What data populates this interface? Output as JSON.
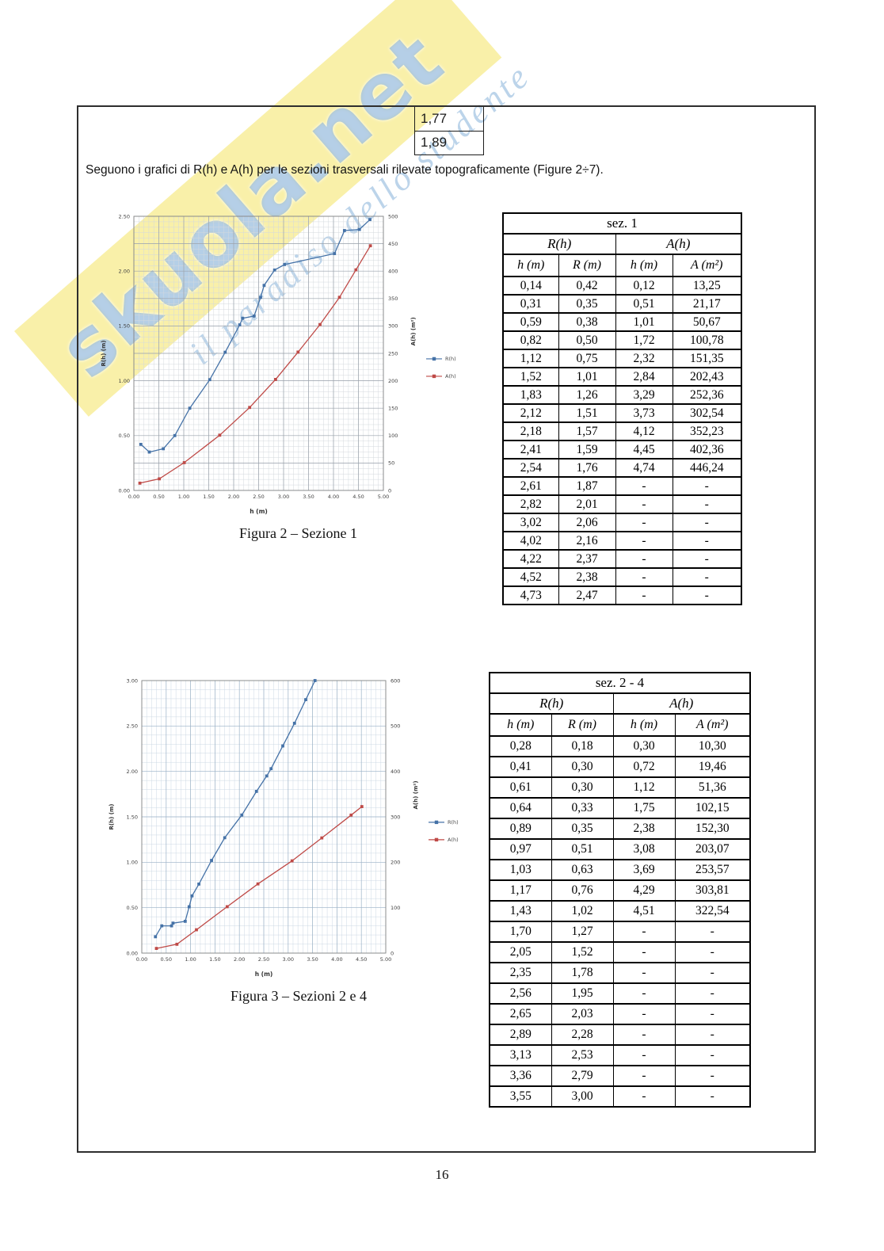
{
  "page": {
    "number": "16"
  },
  "watermark": {
    "brand": "skuola.net",
    "tagline": "il paradiso dello studente",
    "brand_color": "#649ad0",
    "band_color": "#f4e253"
  },
  "fragment_table": {
    "rows": [
      "1,77",
      "1,89"
    ]
  },
  "intro_text": "Seguono i grafici di R(h) e A(h) per le sezioni trasversali rilevate topograficamente (Figure 2÷7).",
  "figures": [
    {
      "caption": "Figura 2 – Sezione 1"
    },
    {
      "caption": "Figura 3 – Sezioni 2 e 4"
    }
  ],
  "tables": [
    {
      "title": "sez. 1",
      "group_headers": [
        "R(h)",
        "A(h)"
      ],
      "col_headers": [
        "h (m)",
        "R (m)",
        "h (m)",
        "A (m²)"
      ],
      "rows": [
        [
          "0,14",
          "0,42",
          "0,12",
          "13,25"
        ],
        [
          "0,31",
          "0,35",
          "0,51",
          "21,17"
        ],
        [
          "0,59",
          "0,38",
          "1,01",
          "50,67"
        ],
        [
          "0,82",
          "0,50",
          "1,72",
          "100,78"
        ],
        [
          "1,12",
          "0,75",
          "2,32",
          "151,35"
        ],
        [
          "1,52",
          "1,01",
          "2,84",
          "202,43"
        ],
        [
          "1,83",
          "1,26",
          "3,29",
          "252,36"
        ],
        [
          "2,12",
          "1,51",
          "3,73",
          "302,54"
        ],
        [
          "2,18",
          "1,57",
          "4,12",
          "352,23"
        ],
        [
          "2,41",
          "1,59",
          "4,45",
          "402,36"
        ],
        [
          "2,54",
          "1,76",
          "4,74",
          "446,24"
        ],
        [
          "2,61",
          "1,87",
          "-",
          "-"
        ],
        [
          "2,82",
          "2,01",
          "-",
          "-"
        ],
        [
          "3,02",
          "2,06",
          "-",
          "-"
        ],
        [
          "4,02",
          "2,16",
          "-",
          "-"
        ],
        [
          "4,22",
          "2,37",
          "-",
          "-"
        ],
        [
          "4,52",
          "2,38",
          "-",
          "-"
        ],
        [
          "4,73",
          "2,47",
          "-",
          "-"
        ]
      ]
    },
    {
      "title": "sez. 2 - 4",
      "group_headers": [
        "R(h)",
        "A(h)"
      ],
      "col_headers": [
        "h (m)",
        "R (m)",
        "h (m)",
        "A (m²)"
      ],
      "rows": [
        [
          "0,28",
          "0,18",
          "0,30",
          "10,30"
        ],
        [
          "0,41",
          "0,30",
          "0,72",
          "19,46"
        ],
        [
          "0,61",
          "0,30",
          "1,12",
          "51,36"
        ],
        [
          "0,64",
          "0,33",
          "1,75",
          "102,15"
        ],
        [
          "0,89",
          "0,35",
          "2,38",
          "152,30"
        ],
        [
          "0,97",
          "0,51",
          "3,08",
          "203,07"
        ],
        [
          "1,03",
          "0,63",
          "3,69",
          "253,57"
        ],
        [
          "1,17",
          "0,76",
          "4,29",
          "303,81"
        ],
        [
          "1,43",
          "1,02",
          "4,51",
          "322,54"
        ],
        [
          "1,70",
          "1,27",
          "-",
          "-"
        ],
        [
          "2,05",
          "1,52",
          "-",
          "-"
        ],
        [
          "2,35",
          "1,78",
          "-",
          "-"
        ],
        [
          "2,56",
          "1,95",
          "-",
          "-"
        ],
        [
          "2,65",
          "2,03",
          "-",
          "-"
        ],
        [
          "2,89",
          "2,28",
          "-",
          "-"
        ],
        [
          "3,13",
          "2,53",
          "-",
          "-"
        ],
        [
          "3,36",
          "2,79",
          "-",
          "-"
        ],
        [
          "3,55",
          "3,00",
          "-",
          "-"
        ]
      ]
    }
  ],
  "chart_data": [
    {
      "type": "line",
      "title": "Sezione 1",
      "xlabel": "h (m)",
      "ylabel_left": "R(h) (m)",
      "ylabel_right": "A(h) (m²)",
      "x_range": [
        0,
        5
      ],
      "x_major": 0.5,
      "x_minor": 0.1,
      "left_range": [
        0,
        2.5
      ],
      "left_major": 0.5,
      "right_range": [
        0,
        500
      ],
      "right_major": 50,
      "right_minor": 10,
      "dec": {
        "x": 2,
        "left": 2,
        "right": 0
      },
      "grid": {
        "minor": "#d4d9de",
        "major": "#9aa2ab"
      },
      "legend_position": "right",
      "series": [
        {
          "name": "R(h)",
          "axis": "left",
          "color": "#4572a7",
          "points": [
            [
              0.14,
              0.42
            ],
            [
              0.31,
              0.35
            ],
            [
              0.59,
              0.38
            ],
            [
              0.82,
              0.5
            ],
            [
              1.12,
              0.75
            ],
            [
              1.52,
              1.01
            ],
            [
              1.83,
              1.26
            ],
            [
              2.12,
              1.51
            ],
            [
              2.18,
              1.57
            ],
            [
              2.41,
              1.59
            ],
            [
              2.54,
              1.76
            ],
            [
              2.61,
              1.87
            ],
            [
              2.82,
              2.01
            ],
            [
              3.02,
              2.06
            ],
            [
              4.02,
              2.16
            ],
            [
              4.22,
              2.37
            ],
            [
              4.52,
              2.38
            ],
            [
              4.73,
              2.47
            ]
          ]
        },
        {
          "name": "A(h)",
          "axis": "right",
          "color": "#bf4a47",
          "points": [
            [
              0.12,
              13.25
            ],
            [
              0.51,
              21.17
            ],
            [
              1.01,
              50.67
            ],
            [
              1.72,
              100.78
            ],
            [
              2.32,
              151.35
            ],
            [
              2.84,
              202.43
            ],
            [
              3.29,
              252.36
            ],
            [
              3.73,
              302.54
            ],
            [
              4.12,
              352.23
            ],
            [
              4.45,
              402.36
            ],
            [
              4.74,
              446.24
            ]
          ]
        }
      ]
    },
    {
      "type": "line",
      "title": "Sezioni 2 e 4",
      "xlabel": "h (m)",
      "ylabel_left": "R(h) (m)",
      "ylabel_right": "A(h) (m²)",
      "x_range": [
        0,
        5
      ],
      "x_major": 0.5,
      "x_minor": 0.1,
      "left_range": [
        0,
        3
      ],
      "left_major": 0.5,
      "right_range": [
        0,
        600
      ],
      "right_major": 100,
      "right_minor": 20,
      "dec": {
        "x": 2,
        "left": 2,
        "right": 0
      },
      "grid": {
        "minor": "#ccd8e4",
        "major": "#9db3c8"
      },
      "legend_position": "right",
      "series": [
        {
          "name": "R(h)",
          "axis": "left",
          "color": "#4572a7",
          "points": [
            [
              0.28,
              0.18
            ],
            [
              0.41,
              0.3
            ],
            [
              0.61,
              0.3
            ],
            [
              0.64,
              0.33
            ],
            [
              0.89,
              0.35
            ],
            [
              0.97,
              0.51
            ],
            [
              1.03,
              0.63
            ],
            [
              1.17,
              0.76
            ],
            [
              1.43,
              1.02
            ],
            [
              1.7,
              1.27
            ],
            [
              2.05,
              1.52
            ],
            [
              2.35,
              1.78
            ],
            [
              2.56,
              1.95
            ],
            [
              2.65,
              2.03
            ],
            [
              2.89,
              2.28
            ],
            [
              3.13,
              2.53
            ],
            [
              3.36,
              2.79
            ],
            [
              3.55,
              3.0
            ]
          ]
        },
        {
          "name": "A(h)",
          "axis": "right",
          "color": "#bf4a47",
          "points": [
            [
              0.3,
              10.3
            ],
            [
              0.72,
              19.46
            ],
            [
              1.12,
              51.36
            ],
            [
              1.75,
              102.15
            ],
            [
              2.38,
              152.3
            ],
            [
              3.08,
              203.07
            ],
            [
              3.69,
              253.57
            ],
            [
              4.29,
              303.81
            ],
            [
              4.51,
              322.54
            ]
          ]
        }
      ]
    }
  ]
}
